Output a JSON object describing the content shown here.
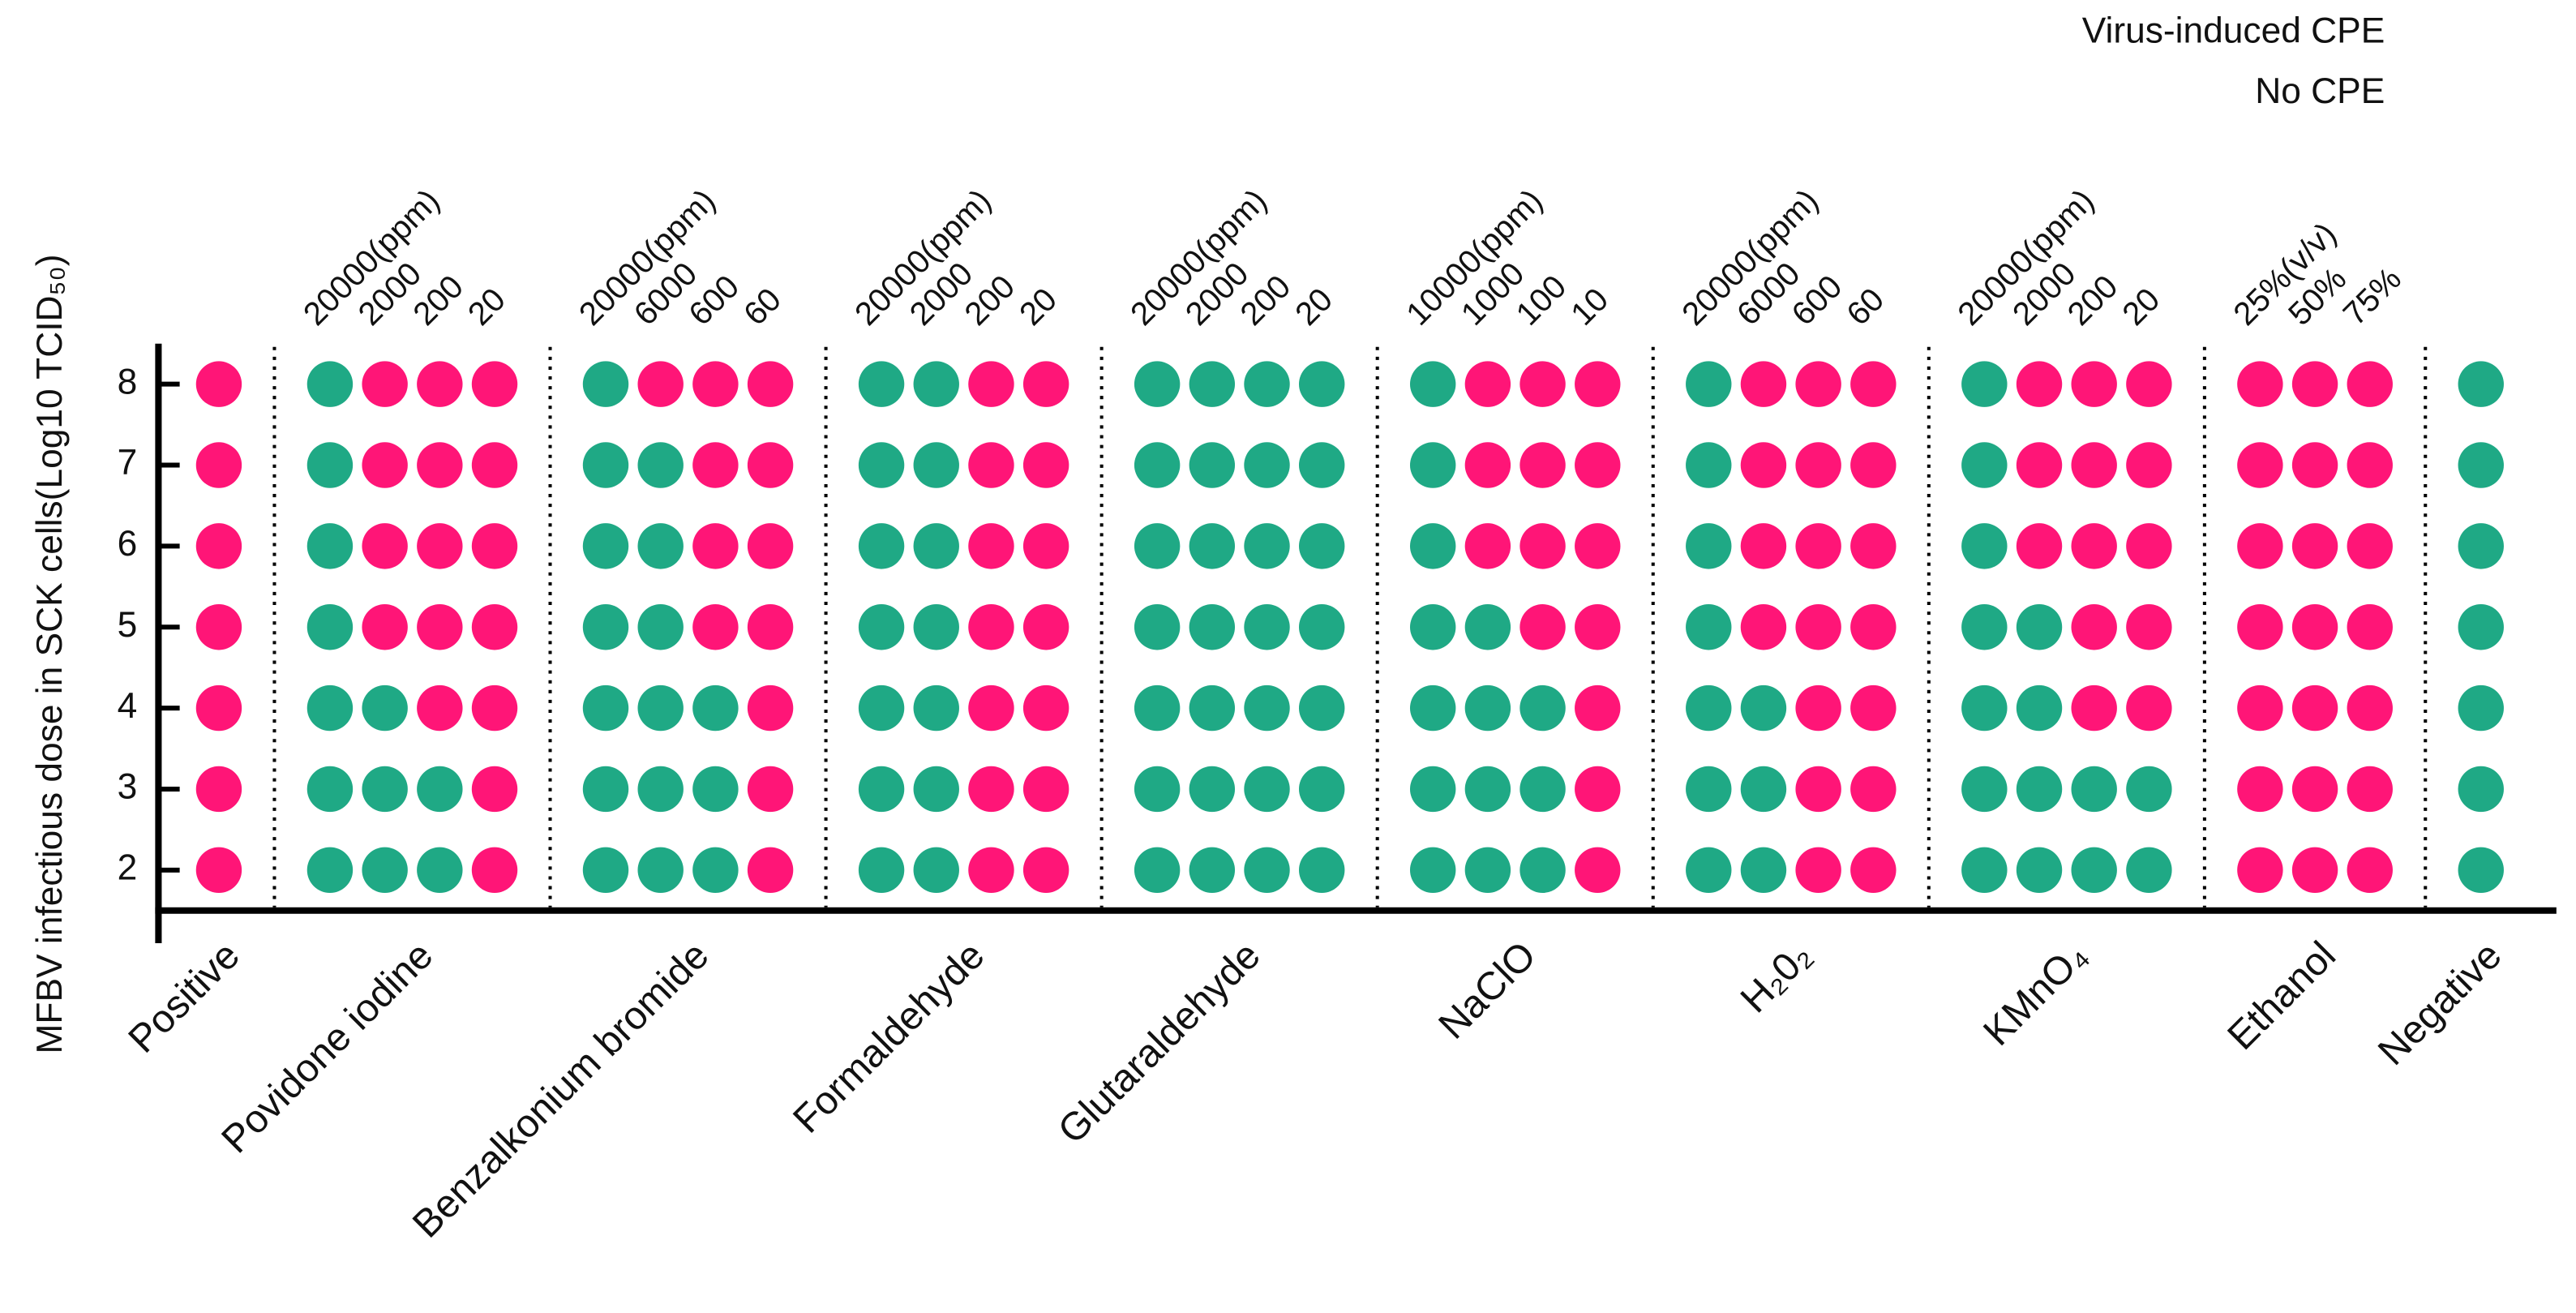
{
  "chart_data": {
    "type": "dot-matrix",
    "ylabel": "MFBV infectious dose in SCK cells(Log10 TCID₅₀)",
    "ylim": [
      1.5,
      8.5
    ],
    "yticks": [
      2,
      3,
      4,
      5,
      6,
      7,
      8
    ],
    "series": [
      {
        "name": "Virus-induced CPE",
        "color": "#ff1577"
      },
      {
        "name": "No CPE",
        "color": "#1fa985"
      }
    ],
    "groups": [
      {
        "name": "Positive",
        "columns": [
          {
            "values": [
              0,
              0,
              0,
              0,
              0,
              0,
              0
            ]
          }
        ]
      },
      {
        "name": "Povidone iodine",
        "columns": [
          {
            "label": "20000(ppm)",
            "values": [
              1,
              1,
              1,
              1,
              1,
              1,
              1
            ]
          },
          {
            "label": "2000",
            "values": [
              1,
              1,
              1,
              0,
              0,
              0,
              0
            ]
          },
          {
            "label": "200",
            "values": [
              1,
              1,
              0,
              0,
              0,
              0,
              0
            ]
          },
          {
            "label": "20",
            "values": [
              0,
              0,
              0,
              0,
              0,
              0,
              0
            ]
          }
        ]
      },
      {
        "name": "Benzalkonium bromide",
        "columns": [
          {
            "label": "20000(ppm)",
            "values": [
              1,
              1,
              1,
              1,
              1,
              1,
              1
            ]
          },
          {
            "label": "6000",
            "values": [
              1,
              1,
              1,
              1,
              1,
              1,
              0
            ]
          },
          {
            "label": "600",
            "values": [
              1,
              1,
              1,
              0,
              0,
              0,
              0
            ]
          },
          {
            "label": "60",
            "values": [
              0,
              0,
              0,
              0,
              0,
              0,
              0
            ]
          }
        ]
      },
      {
        "name": "Formaldehyde",
        "columns": [
          {
            "label": "20000(ppm)",
            "values": [
              1,
              1,
              1,
              1,
              1,
              1,
              1
            ]
          },
          {
            "label": "2000",
            "values": [
              1,
              1,
              1,
              1,
              1,
              1,
              1
            ]
          },
          {
            "label": "200",
            "values": [
              0,
              0,
              0,
              0,
              0,
              0,
              0
            ]
          },
          {
            "label": "20",
            "values": [
              0,
              0,
              0,
              0,
              0,
              0,
              0
            ]
          }
        ]
      },
      {
        "name": "Glutaraldehyde",
        "columns": [
          {
            "label": "20000(ppm)",
            "values": [
              1,
              1,
              1,
              1,
              1,
              1,
              1
            ]
          },
          {
            "label": "2000",
            "values": [
              1,
              1,
              1,
              1,
              1,
              1,
              1
            ]
          },
          {
            "label": "200",
            "values": [
              1,
              1,
              1,
              1,
              1,
              1,
              1
            ]
          },
          {
            "label": "20",
            "values": [
              1,
              1,
              1,
              1,
              1,
              1,
              1
            ]
          }
        ]
      },
      {
        "name": "NaClO",
        "columns": [
          {
            "label": "10000(ppm)",
            "values": [
              1,
              1,
              1,
              1,
              1,
              1,
              1
            ]
          },
          {
            "label": "1000",
            "values": [
              1,
              1,
              1,
              1,
              0,
              0,
              0
            ]
          },
          {
            "label": "100",
            "values": [
              1,
              1,
              1,
              0,
              0,
              0,
              0
            ]
          },
          {
            "label": "10",
            "values": [
              0,
              0,
              0,
              0,
              0,
              0,
              0
            ]
          }
        ]
      },
      {
        "name": "H₂0₂",
        "columns": [
          {
            "label": "20000(ppm)",
            "values": [
              1,
              1,
              1,
              1,
              1,
              1,
              1
            ]
          },
          {
            "label": "6000",
            "values": [
              1,
              1,
              1,
              0,
              0,
              0,
              0
            ]
          },
          {
            "label": "600",
            "values": [
              0,
              0,
              0,
              0,
              0,
              0,
              0
            ]
          },
          {
            "label": "60",
            "values": [
              0,
              0,
              0,
              0,
              0,
              0,
              0
            ]
          }
        ]
      },
      {
        "name": "KMnO₄",
        "columns": [
          {
            "label": "20000(ppm)",
            "values": [
              1,
              1,
              1,
              1,
              1,
              1,
              1
            ]
          },
          {
            "label": "2000",
            "values": [
              1,
              1,
              1,
              1,
              0,
              0,
              0
            ]
          },
          {
            "label": "200",
            "values": [
              1,
              1,
              0,
              0,
              0,
              0,
              0
            ]
          },
          {
            "label": "20",
            "values": [
              1,
              1,
              0,
              0,
              0,
              0,
              0
            ]
          }
        ]
      },
      {
        "name": "Ethanol",
        "columns": [
          {
            "label": "25%(v/v)",
            "values": [
              0,
              0,
              0,
              0,
              0,
              0,
              0
            ]
          },
          {
            "label": "50%",
            "values": [
              0,
              0,
              0,
              0,
              0,
              0,
              0
            ]
          },
          {
            "label": "75%",
            "values": [
              0,
              0,
              0,
              0,
              0,
              0,
              0
            ]
          }
        ]
      },
      {
        "name": "Negative",
        "columns": [
          {
            "values": [
              1,
              1,
              1,
              1,
              1,
              1,
              1
            ]
          }
        ]
      }
    ]
  }
}
